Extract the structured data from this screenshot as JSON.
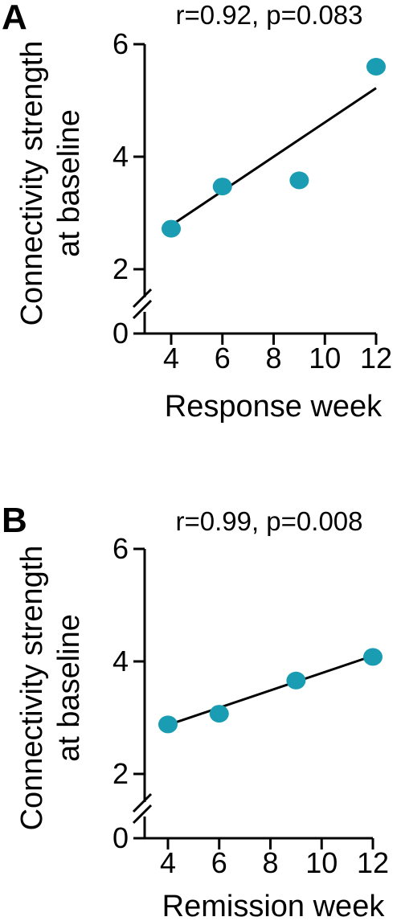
{
  "chart_data": [
    {
      "type": "scatter",
      "panel_label": "A",
      "stat_text": "r=0.92, p=0.083",
      "xlabel": "Response week",
      "ylabel_lines": [
        "Connectivity strength",
        "at baseline"
      ],
      "x_ticks": [
        4,
        6,
        8,
        10,
        12
      ],
      "y_ticks": [
        0,
        2,
        4,
        6
      ],
      "xlim": [
        3,
        13
      ],
      "y_axis_break": true,
      "points": [
        {
          "x": 4,
          "y": 2.72
        },
        {
          "x": 6,
          "y": 3.47
        },
        {
          "x": 9,
          "y": 3.58
        },
        {
          "x": 12,
          "y": 5.6
        }
      ],
      "fit_line": [
        {
          "x": 4,
          "y": 2.78
        },
        {
          "x": 12,
          "y": 5.22
        }
      ],
      "marker_color": "#1a9db2",
      "grid": false,
      "legend": "none"
    },
    {
      "type": "scatter",
      "panel_label": "B",
      "stat_text": "r=0.99, p=0.008",
      "xlabel": "Remission week",
      "ylabel_lines": [
        "Connectivity strength",
        "at baseline"
      ],
      "x_ticks": [
        4,
        6,
        8,
        10,
        12
      ],
      "y_ticks": [
        0,
        2,
        4,
        6
      ],
      "xlim": [
        3,
        13
      ],
      "y_axis_break": true,
      "points": [
        {
          "x": 4,
          "y": 2.88
        },
        {
          "x": 6,
          "y": 3.07
        },
        {
          "x": 9,
          "y": 3.66
        },
        {
          "x": 12,
          "y": 4.08
        }
      ],
      "fit_line": [
        {
          "x": 4,
          "y": 2.87
        },
        {
          "x": 12,
          "y": 4.1
        }
      ],
      "marker_color": "#1a9db2",
      "grid": false,
      "legend": "none"
    }
  ]
}
